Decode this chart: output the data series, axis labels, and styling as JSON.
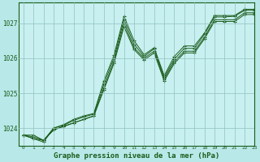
{
  "xlabel": "Graphe pression niveau de la mer (hPa)",
  "ylabel": "",
  "bg_color": "#b8e8e8",
  "plot_bg_color": "#c8f0f0",
  "grid_color": "#90c0c0",
  "line_color": "#1a5c1a",
  "text_color": "#1a5c1a",
  "xlim": [
    -0.5,
    23
  ],
  "ylim": [
    1023.5,
    1027.6
  ],
  "yticks": [
    1024,
    1025,
    1026,
    1027
  ],
  "xticks": [
    0,
    1,
    2,
    3,
    4,
    5,
    6,
    7,
    8,
    9,
    10,
    11,
    12,
    13,
    14,
    15,
    16,
    17,
    18,
    19,
    20,
    21,
    22,
    23
  ],
  "series": [
    [
      1023.8,
      1023.8,
      1023.65,
      1023.95,
      1024.05,
      1024.15,
      1024.25,
      1024.35,
      1025.1,
      1025.85,
      1026.9,
      1026.25,
      1025.95,
      1026.15,
      1025.35,
      1025.85,
      1026.15,
      1026.15,
      1026.55,
      1027.05,
      1027.05,
      1027.05,
      1027.25,
      1027.25
    ],
    [
      1023.8,
      1023.75,
      1023.65,
      1023.95,
      1024.05,
      1024.15,
      1024.25,
      1024.35,
      1025.15,
      1025.9,
      1027.0,
      1026.3,
      1026.0,
      1026.2,
      1025.4,
      1025.9,
      1026.2,
      1026.2,
      1026.6,
      1027.1,
      1027.1,
      1027.1,
      1027.3,
      1027.3
    ],
    [
      1023.8,
      1023.7,
      1023.65,
      1024.0,
      1024.08,
      1024.22,
      1024.32,
      1024.4,
      1025.25,
      1026.0,
      1027.1,
      1026.4,
      1026.05,
      1026.27,
      1025.45,
      1025.97,
      1026.28,
      1026.28,
      1026.68,
      1027.18,
      1027.18,
      1027.2,
      1027.37,
      1027.37
    ],
    [
      1023.8,
      1023.7,
      1023.6,
      1024.0,
      1024.1,
      1024.25,
      1024.35,
      1024.42,
      1025.35,
      1026.08,
      1027.2,
      1026.5,
      1026.1,
      1026.3,
      1025.5,
      1026.05,
      1026.35,
      1026.35,
      1026.72,
      1027.22,
      1027.22,
      1027.22,
      1027.4,
      1027.4
    ]
  ]
}
